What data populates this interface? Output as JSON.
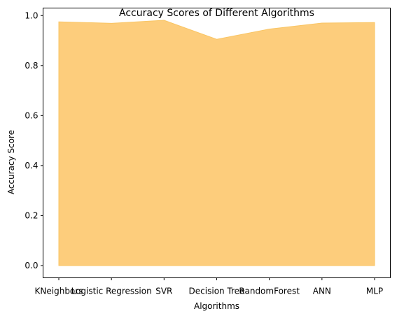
{
  "chart_data": {
    "type": "area",
    "title": "Accuracy Scores of Different Algorithms",
    "xlabel": "Algorithms",
    "ylabel": "Accuracy Score",
    "categories": [
      "KNeighbors",
      "Logistic Regression",
      "SVR",
      "Decision Tree",
      "RandomForest",
      "ANN",
      "MLP"
    ],
    "values": [
      0.975,
      0.969,
      0.981,
      0.905,
      0.946,
      0.97,
      0.972
    ],
    "ylim": [
      -0.0491,
      1.0301
    ],
    "yticks": [
      0.0,
      0.2,
      0.4,
      0.6,
      0.8,
      1.0
    ],
    "ytick_labels": [
      "0.0",
      "0.2",
      "0.4",
      "0.6",
      "0.8",
      "1.0"
    ],
    "fill_color": "#fdcd7c",
    "edge_color": "#f9c564",
    "grid": false,
    "legend": "none"
  }
}
